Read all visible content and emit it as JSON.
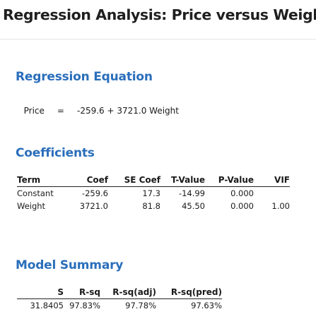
{
  "title": "Regression Analysis: Price versus Weight",
  "regression_equation": {
    "heading": "Regression Equation",
    "response": "Price",
    "equals": "=",
    "expression": "-259.6 + 3721.0 Weight"
  },
  "coefficients": {
    "heading": "Coefficients",
    "columns": [
      "Term",
      "Coef",
      "SE Coef",
      "T-Value",
      "P-Value",
      "VIF"
    ],
    "rows": [
      [
        "Constant",
        "-259.6",
        "17.3",
        "-14.99",
        "0.000",
        ""
      ],
      [
        "Weight",
        "3721.0",
        "81.8",
        "45.50",
        "0.000",
        "1.00"
      ]
    ]
  },
  "model_summary": {
    "heading": "Model Summary",
    "columns": [
      "S",
      "R-sq",
      "R-sq(adj)",
      "R-sq(pred)"
    ],
    "rows": [
      [
        "31.8405",
        "97.83%",
        "97.78%",
        "97.63%"
      ]
    ]
  }
}
